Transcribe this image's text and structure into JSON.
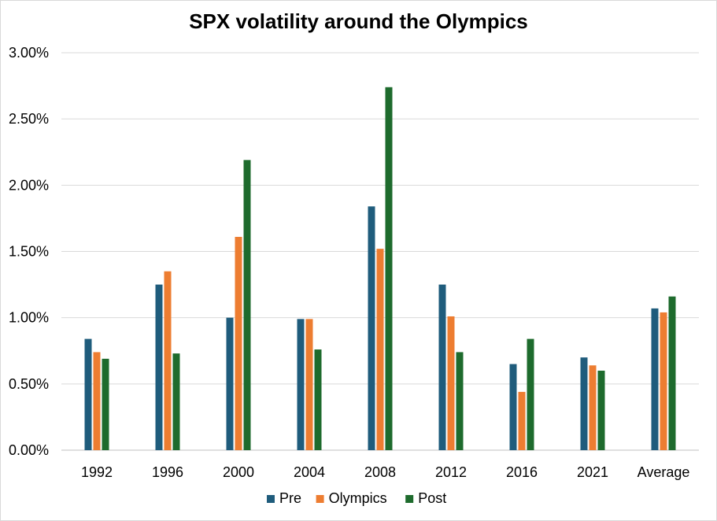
{
  "chart_data": {
    "type": "bar",
    "title": "SPX volatility around the Olympics",
    "xlabel": "",
    "ylabel": "",
    "categories": [
      "1992",
      "1996",
      "2000",
      "2004",
      "2008",
      "2012",
      "2016",
      "2021",
      "Average"
    ],
    "series": [
      {
        "name": "Pre",
        "color": "#1f5c7c",
        "values": [
          0.84,
          1.25,
          1.0,
          0.99,
          1.84,
          1.25,
          0.65,
          0.7,
          1.07
        ]
      },
      {
        "name": "Olympics",
        "color": "#ed7d31",
        "values": [
          0.74,
          1.35,
          1.61,
          0.99,
          1.52,
          1.01,
          0.44,
          0.64,
          1.04
        ]
      },
      {
        "name": "Post",
        "color": "#1e6b2d",
        "values": [
          0.69,
          0.73,
          2.19,
          0.76,
          2.74,
          0.74,
          0.84,
          0.6,
          1.16
        ]
      }
    ],
    "ylim": [
      0,
      3.0
    ],
    "yticks": [
      0,
      0.5,
      1.0,
      1.5,
      2.0,
      2.5,
      3.0
    ],
    "ytick_labels": [
      "0.00%",
      "0.50%",
      "1.00%",
      "1.50%",
      "2.00%",
      "2.50%",
      "3.00%"
    ],
    "grid": true,
    "legend_position": "bottom"
  }
}
